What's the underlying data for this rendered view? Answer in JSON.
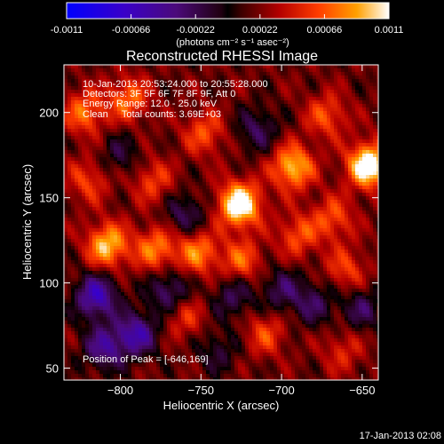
{
  "chart_data": {
    "type": "heatmap",
    "title": "Reconstructed RHESSI Image",
    "colorbar": {
      "ticks": [
        "-0.0011",
        "-0.00066",
        "-0.00022",
        "0.00022",
        "0.00066",
        "0.0011"
      ],
      "range": [
        -0.0011,
        0.0011
      ],
      "unit_label": "(photons cm⁻² s⁻¹ asec⁻²)"
    },
    "xlabel": "Heliocentric X (arcsec)",
    "ylabel": "Heliocentric Y (arcsec)",
    "xlim": [
      -835,
      -640
    ],
    "ylim": [
      43,
      228
    ],
    "xticks": [
      {
        "value": -800,
        "label": "−800"
      },
      {
        "value": -750,
        "label": "−750"
      },
      {
        "value": -700,
        "label": "−700"
      },
      {
        "value": -650,
        "label": "−650"
      }
    ],
    "yticks": [
      {
        "value": 50,
        "label": "50"
      },
      {
        "value": 100,
        "label": "100"
      },
      {
        "value": 150,
        "label": "150"
      },
      {
        "value": 200,
        "label": "200"
      }
    ],
    "annotations": [
      "10-Jan-2013 20:53:24.000 to 20:55:28.000",
      "Detectors: 3F 5F 6F 7F 8F 9F, Att 0",
      "Energy Range: 12.0 - 25.0 keV",
      "Clean     Total counts: 3.69E+03"
    ],
    "peak_label": "Position of Peak = [-646,169]",
    "peak_position": [
      -646,
      169
    ],
    "hotspots": [
      {
        "x": -726,
        "y": 146,
        "value": 0.0011
      },
      {
        "x": -646,
        "y": 169,
        "value": 0.0011
      },
      {
        "x": -693,
        "y": 168,
        "value": 0.0008
      },
      {
        "x": -808,
        "y": 122,
        "value": 0.0008
      },
      {
        "x": -778,
        "y": 120,
        "value": 0.0006
      },
      {
        "x": -752,
        "y": 118,
        "value": 0.0006
      },
      {
        "x": -725,
        "y": 113,
        "value": 0.0005
      },
      {
        "x": -822,
        "y": 200,
        "value": 0.00055
      },
      {
        "x": -795,
        "y": 208,
        "value": 0.00055
      },
      {
        "x": -748,
        "y": 188,
        "value": 0.00045
      },
      {
        "x": -672,
        "y": 198,
        "value": 0.00045
      },
      {
        "x": -690,
        "y": 128,
        "value": 0.00045
      },
      {
        "x": -668,
        "y": 138,
        "value": 0.00045
      },
      {
        "x": -660,
        "y": 108,
        "value": 0.0004
      },
      {
        "x": -780,
        "y": 160,
        "value": 0.0004
      },
      {
        "x": -820,
        "y": 160,
        "value": 0.0004
      },
      {
        "x": -710,
        "y": 70,
        "value": 0.0004
      },
      {
        "x": -760,
        "y": 80,
        "value": 0.00035
      },
      {
        "x": -662,
        "y": 60,
        "value": 0.0003
      }
    ],
    "coldspots": [
      {
        "x": -815,
        "y": 92,
        "value": -0.0008
      },
      {
        "x": -790,
        "y": 70,
        "value": -0.0007
      },
      {
        "x": -770,
        "y": 95,
        "value": -0.0005
      },
      {
        "x": -810,
        "y": 62,
        "value": -0.0006
      },
      {
        "x": -730,
        "y": 92,
        "value": -0.0004
      },
      {
        "x": -700,
        "y": 96,
        "value": -0.0004
      },
      {
        "x": -680,
        "y": 88,
        "value": -0.0004
      },
      {
        "x": -650,
        "y": 85,
        "value": -0.0004
      },
      {
        "x": -760,
        "y": 140,
        "value": -0.0004
      },
      {
        "x": -715,
        "y": 190,
        "value": -0.0004
      },
      {
        "x": -800,
        "y": 175,
        "value": -0.0003
      },
      {
        "x": -740,
        "y": 60,
        "value": -0.0003
      }
    ],
    "grid": false,
    "legend": "none"
  },
  "footer_timestamp": "17-Jan-2013 02:08"
}
